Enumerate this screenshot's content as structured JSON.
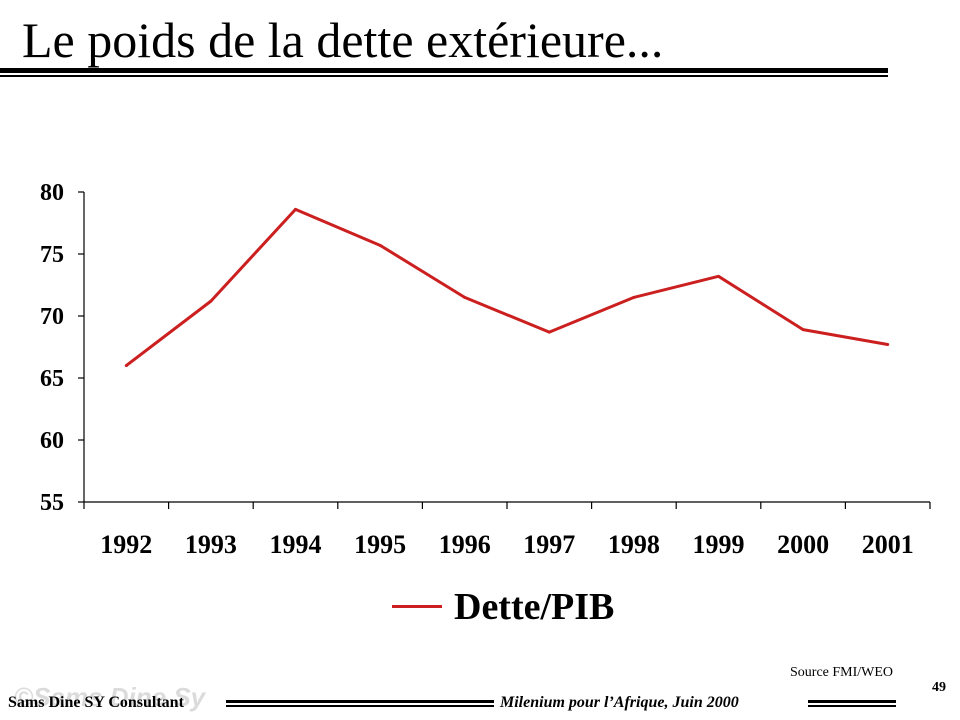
{
  "slide": {
    "title": "Le poids de la dette extérieure...",
    "source": "Source FMI/WEO",
    "page_number": "49",
    "watermark": "©Sams Dine Sy",
    "footer_left": "Sams Dine SY Consultant",
    "footer_right": "Milenium pour l’Afrique, Juin 2000"
  },
  "chart_data": {
    "type": "line",
    "categories": [
      "1992",
      "1993",
      "1994",
      "1995",
      "1996",
      "1997",
      "1998",
      "1999",
      "2000",
      "2001"
    ],
    "series": [
      {
        "name": "Dette/PIB",
        "color": "#cc1f1f",
        "values": [
          66.0,
          71.2,
          78.6,
          75.7,
          71.5,
          68.7,
          71.5,
          73.2,
          68.9,
          67.7
        ]
      }
    ],
    "ylim": [
      55,
      80
    ],
    "yticks": [
      55,
      60,
      65,
      70,
      75,
      80
    ],
    "grid": false,
    "legend_position": "bottom"
  }
}
